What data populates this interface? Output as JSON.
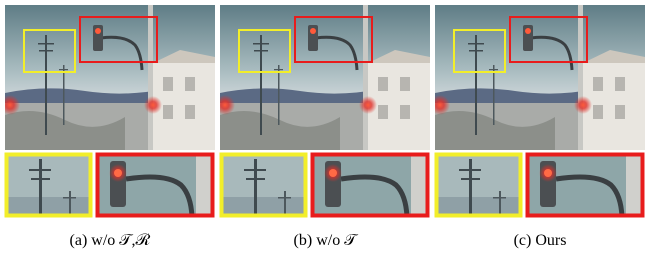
{
  "panels": [
    {
      "caption": "(a) w/o 𝒯,ℛ"
    },
    {
      "caption": "(b) w/o 𝒯"
    },
    {
      "caption": "(c) Ours"
    }
  ]
}
